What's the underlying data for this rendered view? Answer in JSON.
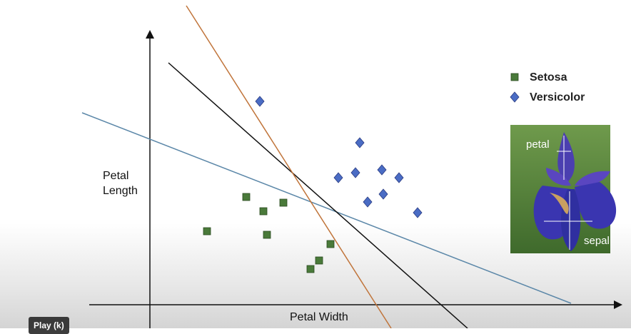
{
  "chart_data": {
    "type": "scatter",
    "x_label": "Petal Width",
    "y_label": "Petal Length",
    "xlim": [
      -8.5,
      66
    ],
    "ylim": [
      -3.3,
      42.7
    ],
    "series": [
      {
        "name": "Setosa",
        "color": "#4a7a3a",
        "marker": "square",
        "x": [
          13.5,
          15.9,
          18.7,
          8,
          16.4,
          25.3,
          23.7,
          22.5
        ],
        "values": [
          15.1,
          13.1,
          14.3,
          10.3,
          9.8,
          8.5,
          6.2,
          5
        ]
      },
      {
        "name": "Versicolor",
        "color": "#4a6cc4",
        "marker": "diamond",
        "x": [
          15.4,
          29.4,
          26.4,
          28.8,
          32.5,
          34.9,
          32.7,
          30.5,
          37.5
        ],
        "values": [
          28.5,
          22.7,
          17.8,
          18.5,
          18.9,
          17.8,
          15.5,
          14.4,
          12.9
        ]
      }
    ],
    "lines": [
      {
        "color": "#5b87a8",
        "x": [
          -9.5,
          59
        ],
        "values": [
          26.9,
          0.2
        ]
      },
      {
        "color": "#111111",
        "x": [
          2.6,
          44.5
        ],
        "values": [
          33.9,
          -3.3
        ]
      },
      {
        "color": "#c0743a",
        "x": [
          5.1,
          33.8
        ],
        "values": [
          41.9,
          -3.3
        ]
      }
    ],
    "image_labels": {
      "petal": "petal",
      "sepal": "sepal"
    }
  },
  "player": {
    "tooltip": "Play (k)"
  }
}
